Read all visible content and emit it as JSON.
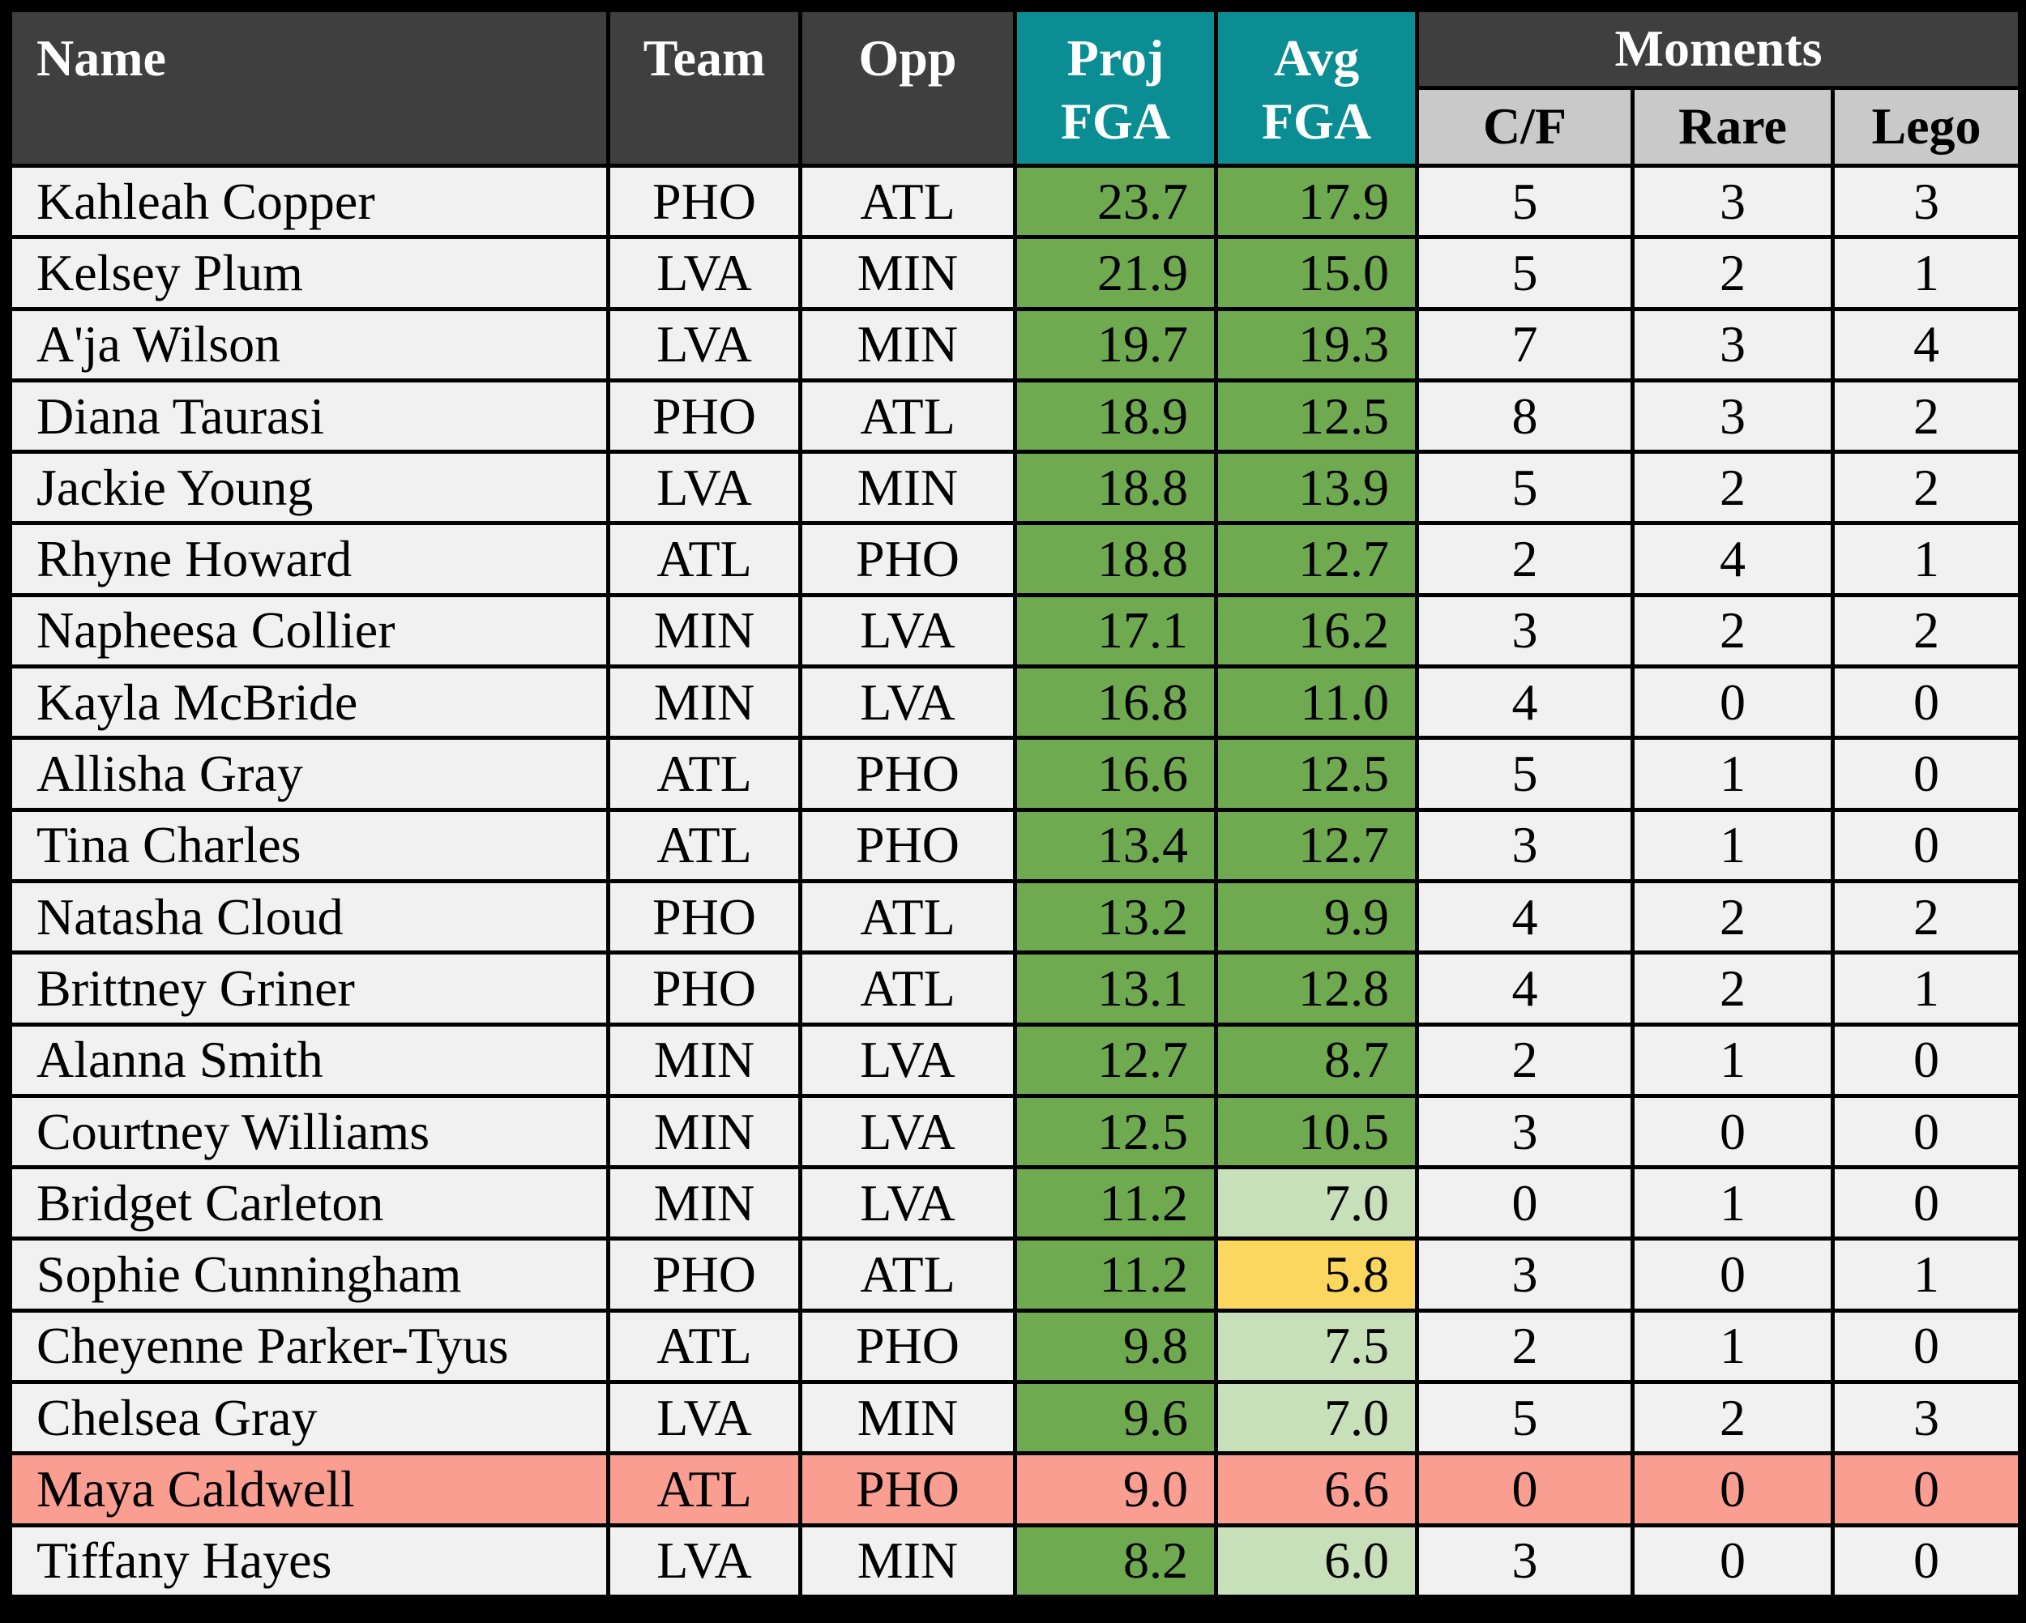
{
  "table": {
    "headers": {
      "name": "Name",
      "team": "Team",
      "opp": "Opp",
      "proj_fga": "Proj\nFGA",
      "avg_fga": "Avg\nFGA",
      "moments": "Moments",
      "cf": "C/F",
      "rare": "Rare",
      "lego": "Lego"
    },
    "rows": [
      {
        "name": "Kahleah Copper",
        "team": "PHO",
        "opp": "ATL",
        "proj": "23.7",
        "avg": "17.9",
        "cf": "5",
        "rare": "3",
        "lego": "3",
        "row": "normal",
        "avg_cell": "green"
      },
      {
        "name": "Kelsey Plum",
        "team": "LVA",
        "opp": "MIN",
        "proj": "21.9",
        "avg": "15.0",
        "cf": "5",
        "rare": "2",
        "lego": "1",
        "row": "normal",
        "avg_cell": "green"
      },
      {
        "name": "A'ja Wilson",
        "team": "LVA",
        "opp": "MIN",
        "proj": "19.7",
        "avg": "19.3",
        "cf": "7",
        "rare": "3",
        "lego": "4",
        "row": "normal",
        "avg_cell": "green"
      },
      {
        "name": "Diana Taurasi",
        "team": "PHO",
        "opp": "ATL",
        "proj": "18.9",
        "avg": "12.5",
        "cf": "8",
        "rare": "3",
        "lego": "2",
        "row": "normal",
        "avg_cell": "green"
      },
      {
        "name": "Jackie Young",
        "team": "LVA",
        "opp": "MIN",
        "proj": "18.8",
        "avg": "13.9",
        "cf": "5",
        "rare": "2",
        "lego": "2",
        "row": "normal",
        "avg_cell": "green"
      },
      {
        "name": "Rhyne Howard",
        "team": "ATL",
        "opp": "PHO",
        "proj": "18.8",
        "avg": "12.7",
        "cf": "2",
        "rare": "4",
        "lego": "1",
        "row": "normal",
        "avg_cell": "green"
      },
      {
        "name": "Napheesa Collier",
        "team": "MIN",
        "opp": "LVA",
        "proj": "17.1",
        "avg": "16.2",
        "cf": "3",
        "rare": "2",
        "lego": "2",
        "row": "normal",
        "avg_cell": "green"
      },
      {
        "name": "Kayla McBride",
        "team": "MIN",
        "opp": "LVA",
        "proj": "16.8",
        "avg": "11.0",
        "cf": "4",
        "rare": "0",
        "lego": "0",
        "row": "normal",
        "avg_cell": "green"
      },
      {
        "name": "Allisha Gray",
        "team": "ATL",
        "opp": "PHO",
        "proj": "16.6",
        "avg": "12.5",
        "cf": "5",
        "rare": "1",
        "lego": "0",
        "row": "normal",
        "avg_cell": "green"
      },
      {
        "name": "Tina Charles",
        "team": "ATL",
        "opp": "PHO",
        "proj": "13.4",
        "avg": "12.7",
        "cf": "3",
        "rare": "1",
        "lego": "0",
        "row": "normal",
        "avg_cell": "green"
      },
      {
        "name": "Natasha Cloud",
        "team": "PHO",
        "opp": "ATL",
        "proj": "13.2",
        "avg": "9.9",
        "cf": "4",
        "rare": "2",
        "lego": "2",
        "row": "normal",
        "avg_cell": "green"
      },
      {
        "name": "Brittney Griner",
        "team": "PHO",
        "opp": "ATL",
        "proj": "13.1",
        "avg": "12.8",
        "cf": "4",
        "rare": "2",
        "lego": "1",
        "row": "normal",
        "avg_cell": "green"
      },
      {
        "name": "Alanna Smith",
        "team": "MIN",
        "opp": "LVA",
        "proj": "12.7",
        "avg": "8.7",
        "cf": "2",
        "rare": "1",
        "lego": "0",
        "row": "normal",
        "avg_cell": "green"
      },
      {
        "name": "Courtney Williams",
        "team": "MIN",
        "opp": "LVA",
        "proj": "12.5",
        "avg": "10.5",
        "cf": "3",
        "rare": "0",
        "lego": "0",
        "row": "normal",
        "avg_cell": "green"
      },
      {
        "name": "Bridget Carleton",
        "team": "MIN",
        "opp": "LVA",
        "proj": "11.2",
        "avg": "7.0",
        "cf": "0",
        "rare": "1",
        "lego": "0",
        "row": "normal",
        "avg_cell": "light"
      },
      {
        "name": "Sophie Cunningham",
        "team": "PHO",
        "opp": "ATL",
        "proj": "11.2",
        "avg": "5.8",
        "cf": "3",
        "rare": "0",
        "lego": "1",
        "row": "normal",
        "avg_cell": "yellow"
      },
      {
        "name": "Cheyenne Parker-Tyus",
        "team": "ATL",
        "opp": "PHO",
        "proj": "9.8",
        "avg": "7.5",
        "cf": "2",
        "rare": "1",
        "lego": "0",
        "row": "normal",
        "avg_cell": "light"
      },
      {
        "name": "Chelsea Gray",
        "team": "LVA",
        "opp": "MIN",
        "proj": "9.6",
        "avg": "7.0",
        "cf": "5",
        "rare": "2",
        "lego": "3",
        "row": "normal",
        "avg_cell": "light"
      },
      {
        "name": "Maya Caldwell",
        "team": "ATL",
        "opp": "PHO",
        "proj": "9.0",
        "avg": "6.6",
        "cf": "0",
        "rare": "0",
        "lego": "0",
        "row": "alert",
        "avg_cell": "alert"
      },
      {
        "name": "Tiffany Hayes",
        "team": "LVA",
        "opp": "MIN",
        "proj": "8.2",
        "avg": "6.0",
        "cf": "3",
        "rare": "0",
        "lego": "0",
        "row": "normal",
        "avg_cell": "light"
      }
    ]
  },
  "colors": {
    "border-color": "#000000",
    "header-dark": "#3f3f3f",
    "teal": "#0b8e93",
    "subheader-gray": "#c9c9c9",
    "row-bg": "#f1f1f1",
    "green-dark": "#6faa51",
    "green-light": "#c8e0ba",
    "yellow": "#fcd75f",
    "salmon": "#fa9e91"
  }
}
